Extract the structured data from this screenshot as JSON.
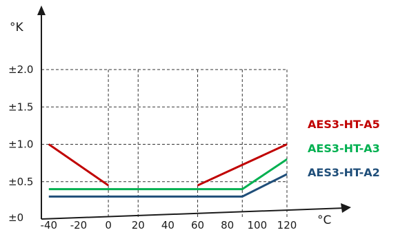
{
  "chart_data": {
    "type": "line",
    "title": "",
    "xlabel": "°C",
    "ylabel": "°K",
    "xlim": [
      -45,
      120
    ],
    "ylim": [
      0,
      2.0
    ],
    "grid": true,
    "legend_placement": "right",
    "x_ticks": [
      {
        "value": -40,
        "label": "-40"
      },
      {
        "value": -20,
        "label": "-20"
      },
      {
        "value": 0,
        "label": "0"
      },
      {
        "value": 20,
        "label": "20"
      },
      {
        "value": 40,
        "label": "40"
      },
      {
        "value": 60,
        "label": "60"
      },
      {
        "value": 80,
        "label": "80"
      },
      {
        "value": 100,
        "label": "100"
      },
      {
        "value": 120,
        "label": "120"
      }
    ],
    "y_ticks": [
      {
        "value": 0,
        "label": "±0"
      },
      {
        "value": 0.5,
        "label": "±0.5"
      },
      {
        "value": 1.0,
        "label": "±1.0"
      },
      {
        "value": 1.5,
        "label": "±1.5"
      },
      {
        "value": 2.0,
        "label": "±2.0"
      }
    ],
    "grid_x": [
      0,
      20,
      60,
      90,
      120
    ],
    "series": [
      {
        "name": "AES3-HT-A5",
        "color": "#c00000",
        "segments": [
          [
            [
              -40,
              1.0
            ],
            [
              0,
              0.45
            ]
          ],
          [
            [
              60,
              0.45
            ],
            [
              120,
              1.0
            ]
          ]
        ]
      },
      {
        "name": "AES3-HT-A3",
        "color": "#00b050",
        "segments": [
          [
            [
              -40,
              0.4
            ],
            [
              90,
              0.4
            ],
            [
              120,
              0.8
            ]
          ]
        ]
      },
      {
        "name": "AES3-HT-A2",
        "color": "#1f4e79",
        "segments": [
          [
            [
              -40,
              0.3
            ],
            [
              90,
              0.3
            ],
            [
              120,
              0.6
            ]
          ]
        ]
      }
    ]
  }
}
